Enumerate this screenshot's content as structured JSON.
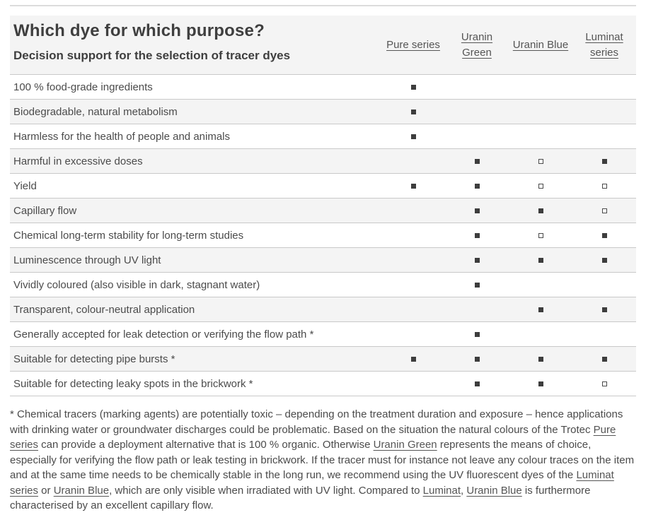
{
  "header": {
    "title": "Which dye for which purpose?",
    "subtitle": "Decision support for the selection of tracer dyes",
    "columns": [
      {
        "label": "Pure series"
      },
      {
        "label": "Uranin Green"
      },
      {
        "label": "Uranin Blue"
      },
      {
        "label": "Luminat series"
      }
    ]
  },
  "table": {
    "rows": [
      {
        "label": "100 % food-grade ingredients",
        "cells": [
          "filled",
          null,
          null,
          null
        ]
      },
      {
        "label": "Biodegradable, natural metabolism",
        "cells": [
          "filled",
          null,
          null,
          null
        ]
      },
      {
        "label": "Harmless for the health of people and animals",
        "cells": [
          "filled",
          null,
          null,
          null
        ]
      },
      {
        "label": "Harmful in excessive doses",
        "cells": [
          null,
          "filled",
          "hollow",
          "filled"
        ]
      },
      {
        "label": "Yield",
        "cells": [
          "filled",
          "filled",
          "hollow",
          "hollow"
        ]
      },
      {
        "label": "Capillary flow",
        "cells": [
          null,
          "filled",
          "filled",
          "hollow"
        ]
      },
      {
        "label": "Chemical long-term stability for long-term studies",
        "cells": [
          null,
          "filled",
          "hollow",
          "filled"
        ]
      },
      {
        "label": "Luminescence through UV light",
        "cells": [
          null,
          "filled",
          "filled",
          "filled"
        ]
      },
      {
        "label": "Vividly coloured (also visible in dark, stagnant water)",
        "cells": [
          null,
          "filled",
          null,
          null
        ]
      },
      {
        "label": "Transparent, colour-neutral application",
        "cells": [
          null,
          null,
          "filled",
          "filled"
        ]
      },
      {
        "label": "Generally accepted for leak detection or verifying the flow path *",
        "cells": [
          null,
          "filled",
          null,
          null
        ]
      },
      {
        "label": "Suitable for detecting pipe bursts *",
        "cells": [
          "filled",
          "filled",
          "filled",
          "filled"
        ]
      },
      {
        "label": "Suitable for detecting leaky spots in the brickwork *",
        "cells": [
          null,
          "filled",
          "filled",
          "hollow"
        ]
      }
    ]
  },
  "footnote": {
    "segments": [
      {
        "text": "* Chemical tracers (marking agents) are potentially toxic – depending on the treatment duration and exposure – hence applications with drinking water or groundwater discharges could be problematic. Based on the situation the natural colours of the Trotec ",
        "link": false
      },
      {
        "text": "Pure series",
        "link": true
      },
      {
        "text": " can provide a deployment alternative that is 100 % organic. Otherwise ",
        "link": false
      },
      {
        "text": "Uranin Green",
        "link": true
      },
      {
        "text": " represents the means of choice, especially for verifying the flow path or leak testing in brickwork. If the tracer must for instance not leave any colour traces on the item and at the same time needs to be chemically stable in the long run, we recommend using the UV fluorescent dyes of the ",
        "link": false
      },
      {
        "text": "Luminat series",
        "link": true
      },
      {
        "text": " or ",
        "link": false
      },
      {
        "text": "Uranin Blue",
        "link": true
      },
      {
        "text": ", which are only visible when irradiated with UV light. Compared to ",
        "link": false
      },
      {
        "text": "Luminat",
        "link": true
      },
      {
        "text": ", ",
        "link": false
      },
      {
        "text": "Uranin Blue",
        "link": true
      },
      {
        "text": " is furthermore characterised by an excellent capillary flow.",
        "link": false
      }
    ]
  },
  "colors": {
    "title_text": "#3f3f3f",
    "body_text": "#4b4b4b",
    "link_text": "#555555",
    "row_stripe": "#f4f4f4",
    "separator": "#c9c9c9",
    "top_rule": "#dcdcdc",
    "marker": "#3d3d3d"
  },
  "markers": {
    "filled_glyph": "filled-square",
    "hollow_glyph": "hollow-square"
  }
}
